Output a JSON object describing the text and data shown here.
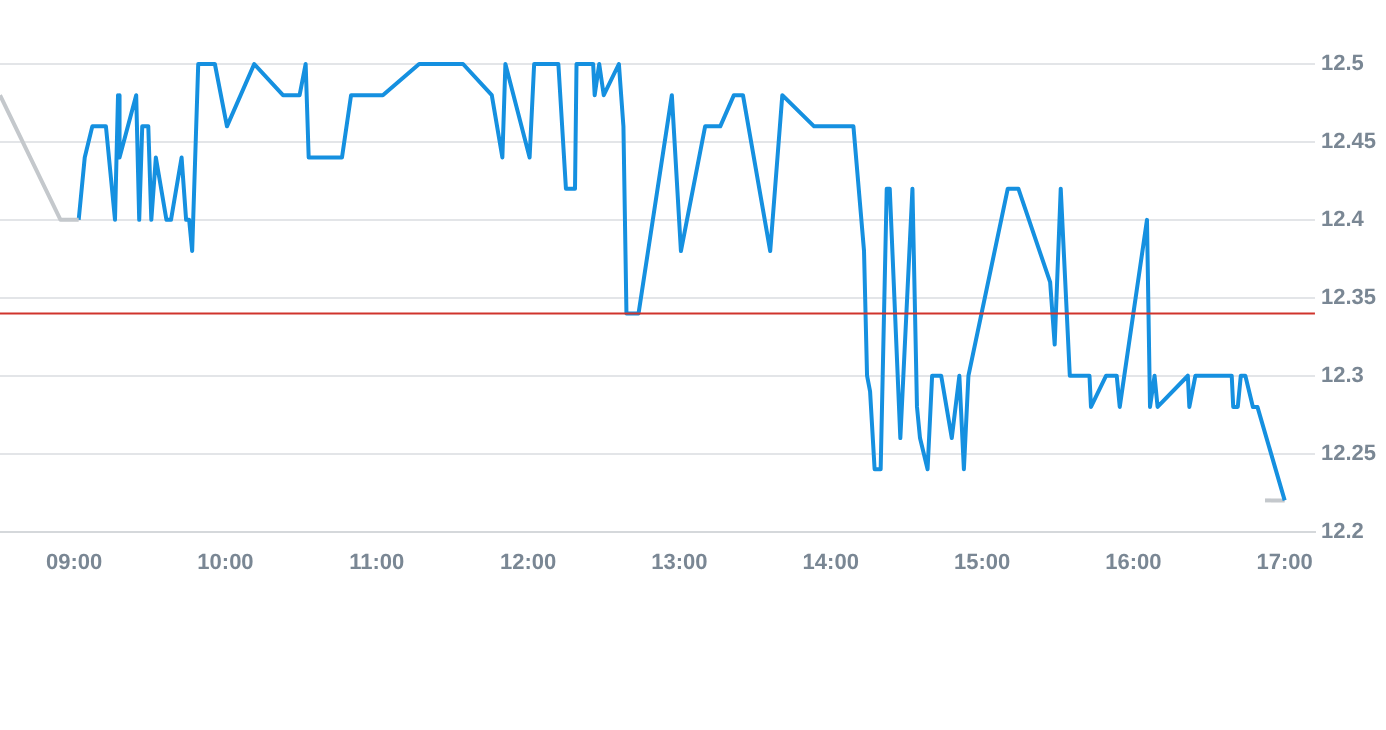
{
  "chart_data": {
    "type": "line",
    "xlim": [
      8.51,
      17.2
    ],
    "ylim": [
      12.2,
      12.5
    ],
    "xticks": [
      {
        "value": 9,
        "label": "09:00"
      },
      {
        "value": 10,
        "label": "10:00"
      },
      {
        "value": 11,
        "label": "11:00"
      },
      {
        "value": 12,
        "label": "12:00"
      },
      {
        "value": 13,
        "label": "13:00"
      },
      {
        "value": 14,
        "label": "14:00"
      },
      {
        "value": 15,
        "label": "15:00"
      },
      {
        "value": 16,
        "label": "16:00"
      },
      {
        "value": 17,
        "label": "17:00"
      }
    ],
    "yticks": [
      12.2,
      12.25,
      12.3,
      12.35,
      12.4,
      12.45,
      12.5
    ],
    "grid": "y",
    "legend": false,
    "marker": "none",
    "line_style": "solid",
    "ref_lines": [
      {
        "axis": "y",
        "value": 12.34,
        "label": null,
        "color": "#d0342c"
      }
    ],
    "series": [
      {
        "color": "#c4c8cc",
        "x": [
          8.51,
          8.91,
          9.03
        ],
        "values": [
          12.48,
          12.4,
          12.4
        ]
      },
      {
        "color": "#1590e0",
        "x": [
          9.03,
          9.07,
          9.12,
          9.21,
          9.27,
          9.29,
          9.3,
          9.41,
          9.43,
          9.45,
          9.49,
          9.51,
          9.54,
          9.61,
          9.64,
          9.71,
          9.74,
          9.76,
          9.78,
          9.82,
          9.93,
          10.01,
          10.19,
          10.38,
          10.49,
          10.53,
          10.55,
          10.77,
          10.83,
          11.04,
          11.28,
          11.57,
          11.76,
          11.83,
          11.85,
          12.01,
          12.04,
          12.2,
          12.25,
          12.31,
          12.32,
          12.43,
          12.44,
          12.47,
          12.5,
          12.6,
          12.63,
          12.65,
          12.73,
          12.95,
          13.01,
          13.17,
          13.27,
          13.36,
          13.42,
          13.6,
          13.68,
          13.89,
          14.15,
          14.22,
          14.24,
          14.26,
          14.29,
          14.33,
          14.37,
          14.39,
          14.46,
          14.54,
          14.57,
          14.59,
          14.64,
          14.67,
          14.73,
          14.8,
          14.85,
          14.88,
          14.91,
          15.17,
          15.24,
          15.45,
          15.48,
          15.52,
          15.58,
          15.71,
          15.72,
          15.82,
          15.89,
          15.91,
          16.09,
          16.11,
          16.14,
          16.16,
          16.36,
          16.37,
          16.41,
          16.65,
          16.66,
          16.69,
          16.71,
          16.74,
          16.79,
          16.82,
          17.0
        ],
        "values": [
          12.4,
          12.44,
          12.46,
          12.46,
          12.4,
          12.48,
          12.44,
          12.48,
          12.4,
          12.46,
          12.46,
          12.4,
          12.44,
          12.4,
          12.4,
          12.44,
          12.4,
          12.4,
          12.38,
          12.5,
          12.5,
          12.46,
          12.5,
          12.48,
          12.48,
          12.5,
          12.44,
          12.44,
          12.48,
          12.48,
          12.5,
          12.5,
          12.48,
          12.44,
          12.5,
          12.44,
          12.5,
          12.5,
          12.42,
          12.42,
          12.5,
          12.5,
          12.48,
          12.5,
          12.48,
          12.5,
          12.46,
          12.34,
          12.34,
          12.48,
          12.38,
          12.46,
          12.46,
          12.48,
          12.48,
          12.38,
          12.48,
          12.46,
          12.46,
          12.38,
          12.3,
          12.29,
          12.24,
          12.24,
          12.42,
          12.42,
          12.26,
          12.42,
          12.28,
          12.26,
          12.24,
          12.3,
          12.3,
          12.26,
          12.3,
          12.24,
          12.3,
          12.42,
          12.42,
          12.36,
          12.32,
          12.42,
          12.3,
          12.3,
          12.28,
          12.3,
          12.3,
          12.28,
          12.4,
          12.28,
          12.3,
          12.28,
          12.3,
          12.28,
          12.3,
          12.3,
          12.28,
          12.28,
          12.3,
          12.3,
          12.28,
          12.28,
          12.22
        ]
      },
      {
        "color": "#c4c8cc",
        "x": [
          16.87,
          17.0
        ],
        "values": [
          12.22,
          12.22
        ]
      }
    ]
  }
}
